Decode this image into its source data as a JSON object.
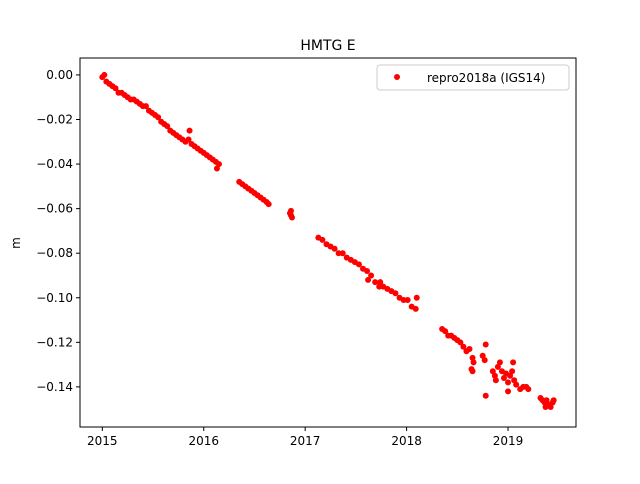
{
  "chart_data": {
    "type": "scatter",
    "title": "HMTG E",
    "xlabel": "",
    "ylabel": "m",
    "xlim": [
      2014.78,
      2019.67
    ],
    "ylim": [
      -0.158,
      0.0076
    ],
    "xticks": [
      2015,
      2016,
      2017,
      2018,
      2019
    ],
    "xtick_labels": [
      "2015",
      "2016",
      "2017",
      "2018",
      "2019"
    ],
    "yticks": [
      0.0,
      -0.02,
      -0.04,
      -0.06,
      -0.08,
      -0.1,
      -0.12,
      -0.14
    ],
    "ytick_labels": [
      "0.00",
      "−0.02",
      "−0.04",
      "−0.06",
      "−0.08",
      "−0.10",
      "−0.12",
      "−0.14"
    ],
    "grid": false,
    "legend_position": "top-right",
    "series": [
      {
        "name": "repro2018a (IGS14)",
        "color": "#ff0000",
        "marker": "circle",
        "x": [
          2015.0,
          2015.02,
          2015.04,
          2015.07,
          2015.1,
          2015.13,
          2015.16,
          2015.19,
          2015.22,
          2015.25,
          2015.28,
          2015.31,
          2015.34,
          2015.37,
          2015.4,
          2015.43,
          2015.46,
          2015.49,
          2015.52,
          2015.55,
          2015.58,
          2015.61,
          2015.64,
          2015.67,
          2015.7,
          2015.73,
          2015.76,
          2015.79,
          2015.82,
          2015.85,
          2015.88,
          2015.91,
          2015.94,
          2015.97,
          2016.0,
          2016.03,
          2016.06,
          2016.09,
          2016.12,
          2016.15,
          2016.13,
          2015.86,
          2016.35,
          2016.38,
          2016.41,
          2016.44,
          2016.47,
          2016.5,
          2016.53,
          2016.56,
          2016.59,
          2016.62,
          2016.64,
          2016.85,
          2016.86,
          2016.87,
          2016.86,
          2017.13,
          2017.17,
          2017.21,
          2017.25,
          2017.29,
          2017.33,
          2017.37,
          2017.41,
          2017.45,
          2017.49,
          2017.53,
          2017.57,
          2017.61,
          2017.65,
          2017.69,
          2017.73,
          2017.77,
          2017.81,
          2017.85,
          2017.89,
          2017.93,
          2017.97,
          2018.01,
          2018.05,
          2018.09,
          2018.1,
          2017.62,
          2017.74,
          2018.35,
          2018.38,
          2018.41,
          2018.44,
          2018.47,
          2018.5,
          2018.53,
          2018.56,
          2018.59,
          2018.62,
          2018.65,
          2018.66,
          2018.75,
          2018.77,
          2018.78,
          2018.64,
          2018.65,
          2018.78,
          2018.85,
          2018.87,
          2018.88,
          2018.9,
          2018.92,
          2018.94,
          2018.96,
          2018.98,
          2019.0,
          2019.02,
          2019.04,
          2019.05,
          2019.06,
          2019.08,
          2019.0,
          2019.12,
          2019.15,
          2019.18,
          2019.2,
          2019.32,
          2019.34,
          2019.36,
          2019.38,
          2019.4,
          2019.42,
          2019.44,
          2019.45,
          2019.37
        ],
        "y": [
          -0.001,
          0.0,
          -0.003,
          -0.004,
          -0.005,
          -0.006,
          -0.008,
          -0.008,
          -0.009,
          -0.01,
          -0.011,
          -0.011,
          -0.012,
          -0.013,
          -0.014,
          -0.014,
          -0.016,
          -0.017,
          -0.018,
          -0.019,
          -0.021,
          -0.022,
          -0.023,
          -0.025,
          -0.026,
          -0.027,
          -0.028,
          -0.029,
          -0.03,
          -0.029,
          -0.031,
          -0.032,
          -0.033,
          -0.034,
          -0.035,
          -0.036,
          -0.037,
          -0.038,
          -0.039,
          -0.04,
          -0.042,
          -0.025,
          -0.048,
          -0.049,
          -0.05,
          -0.051,
          -0.052,
          -0.053,
          -0.054,
          -0.055,
          -0.056,
          -0.057,
          -0.058,
          -0.062,
          -0.063,
          -0.064,
          -0.061,
          -0.073,
          -0.074,
          -0.076,
          -0.077,
          -0.078,
          -0.08,
          -0.08,
          -0.082,
          -0.083,
          -0.084,
          -0.085,
          -0.087,
          -0.088,
          -0.09,
          -0.093,
          -0.095,
          -0.095,
          -0.096,
          -0.097,
          -0.098,
          -0.1,
          -0.101,
          -0.101,
          -0.104,
          -0.105,
          -0.1,
          -0.092,
          -0.093,
          -0.114,
          -0.115,
          -0.117,
          -0.117,
          -0.118,
          -0.119,
          -0.12,
          -0.122,
          -0.124,
          -0.123,
          -0.127,
          -0.129,
          -0.126,
          -0.128,
          -0.121,
          -0.132,
          -0.133,
          -0.144,
          -0.133,
          -0.135,
          -0.137,
          -0.131,
          -0.129,
          -0.133,
          -0.136,
          -0.134,
          -0.138,
          -0.135,
          -0.133,
          -0.129,
          -0.137,
          -0.139,
          -0.142,
          -0.141,
          -0.14,
          -0.14,
          -0.141,
          -0.145,
          -0.146,
          -0.147,
          -0.146,
          -0.148,
          -0.149,
          -0.147,
          -0.146,
          -0.149
        ]
      }
    ]
  }
}
